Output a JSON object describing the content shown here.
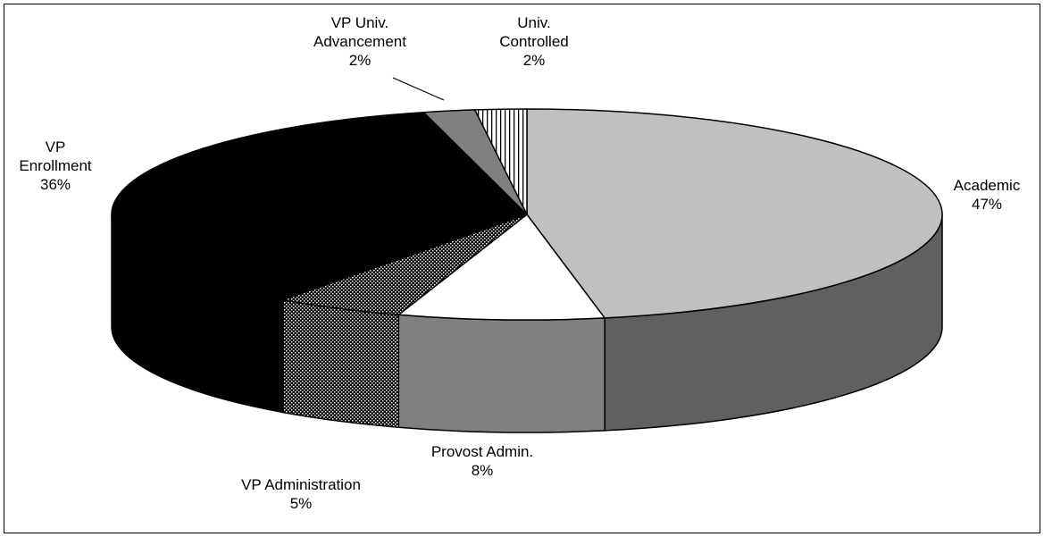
{
  "chart_data": {
    "type": "pie3d",
    "categories": [
      "Academic",
      "Provost Admin.",
      "VP Administration",
      "VP\nEnrollment",
      "VP Univ.\nAdvancement",
      "Univ.\nControlled"
    ],
    "values": [
      47,
      8,
      5,
      36,
      2,
      2
    ],
    "value_labels": [
      "47%",
      "8%",
      "5%",
      "36%",
      "2%",
      "2%"
    ],
    "colors": [
      "#c0c0c0",
      "#ffffff",
      "url(#dots)",
      "#000000",
      "#808080",
      "url(#stripes)"
    ]
  }
}
